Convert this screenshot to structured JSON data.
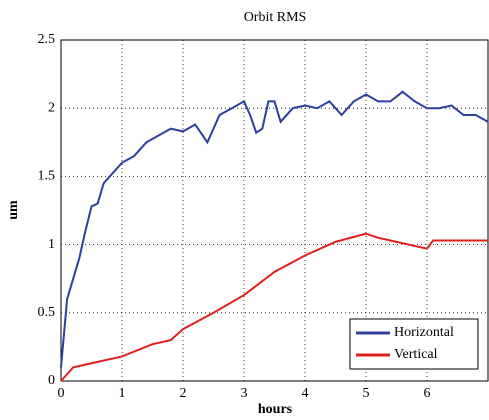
{
  "chart_data": {
    "type": "line",
    "title": "Orbit RMS",
    "x_label": "hours",
    "y_label": "um",
    "xlim": [
      0,
      7
    ],
    "ylim": [
      0,
      2.5
    ],
    "xticks": [
      0,
      1,
      2,
      3,
      4,
      5,
      6
    ],
    "yticks": [
      0,
      0.5,
      1,
      1.5,
      2,
      2.5
    ],
    "grid": true,
    "legend": "lower right",
    "series": [
      {
        "name": "Horizontal",
        "color": "#2e3f9e",
        "x": [
          0,
          0.1,
          0.2,
          0.3,
          0.4,
          0.5,
          0.6,
          0.7,
          0.8,
          0.9,
          1.0,
          1.2,
          1.4,
          1.6,
          1.8,
          2.0,
          2.2,
          2.4,
          2.6,
          2.8,
          3.0,
          3.1,
          3.2,
          3.3,
          3.4,
          3.5,
          3.6,
          3.8,
          4.0,
          4.2,
          4.4,
          4.6,
          4.8,
          5.0,
          5.2,
          5.4,
          5.6,
          5.8,
          6.0,
          6.2,
          6.4,
          6.6,
          6.8,
          7.0
        ],
        "values": [
          0.1,
          0.6,
          0.75,
          0.9,
          1.1,
          1.28,
          1.3,
          1.45,
          1.5,
          1.55,
          1.6,
          1.65,
          1.75,
          1.8,
          1.85,
          1.83,
          1.88,
          1.75,
          1.95,
          2.0,
          2.05,
          1.95,
          1.82,
          1.85,
          2.05,
          2.05,
          1.9,
          2.0,
          2.02,
          2.0,
          2.05,
          1.95,
          2.05,
          2.1,
          2.05,
          2.05,
          2.12,
          2.05,
          2.0,
          2.0,
          2.02,
          1.95,
          1.95,
          1.9
        ]
      },
      {
        "name": "Vertical",
        "color": "#e0201b",
        "x": [
          0,
          0.2,
          0.5,
          1.0,
          1.5,
          1.8,
          2.0,
          2.5,
          3.0,
          3.5,
          4.0,
          4.5,
          5.0,
          5.2,
          5.5,
          6.0,
          6.1,
          6.5,
          7.0
        ],
        "values": [
          0,
          0.1,
          0.13,
          0.18,
          0.27,
          0.3,
          0.38,
          0.5,
          0.63,
          0.8,
          0.92,
          1.02,
          1.08,
          1.05,
          1.02,
          0.97,
          1.03,
          1.03,
          1.03
        ]
      }
    ]
  }
}
